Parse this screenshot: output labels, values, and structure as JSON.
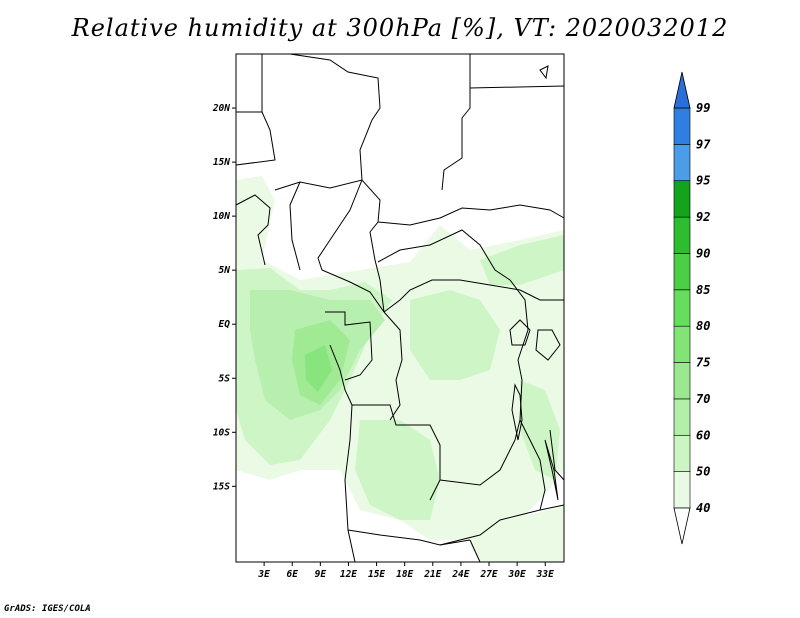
{
  "title": "Relative humidity at 300hPa [%], VT: 2020032012",
  "credit": "GrADS: IGES/COLA",
  "map": {
    "lon_range": [
      0,
      35
    ],
    "lat_range": [
      -22,
      25
    ],
    "x_ticks": [
      "3E",
      "6E",
      "9E",
      "12E",
      "15E",
      "18E",
      "21E",
      "24E",
      "27E",
      "30E",
      "33E"
    ],
    "x_tick_values": [
      3,
      6,
      9,
      12,
      15,
      18,
      21,
      24,
      27,
      30,
      33
    ],
    "y_ticks": [
      "20N",
      "15N",
      "10N",
      "5N",
      "EQ",
      "5S",
      "10S",
      "15S"
    ],
    "y_tick_values": [
      20,
      15,
      10,
      5,
      0,
      -5,
      -10,
      -15
    ]
  },
  "colorbar": {
    "levels": [
      "40",
      "50",
      "60",
      "70",
      "75",
      "80",
      "85",
      "90",
      "92",
      "95",
      "97",
      "99"
    ],
    "colors": [
      "#e9fae4",
      "#ccf5c4",
      "#b4efaa",
      "#9be98f",
      "#82e376",
      "#66dd5c",
      "#4bcf45",
      "#2fbd30",
      "#14a41b",
      "#4b9de8",
      "#2e7fe0",
      "#1f60c8"
    ],
    "over_color": "#2a6ed8",
    "under_color": "#ffffff"
  },
  "colors": {
    "land_border": "#000000",
    "background": "#ffffff"
  }
}
